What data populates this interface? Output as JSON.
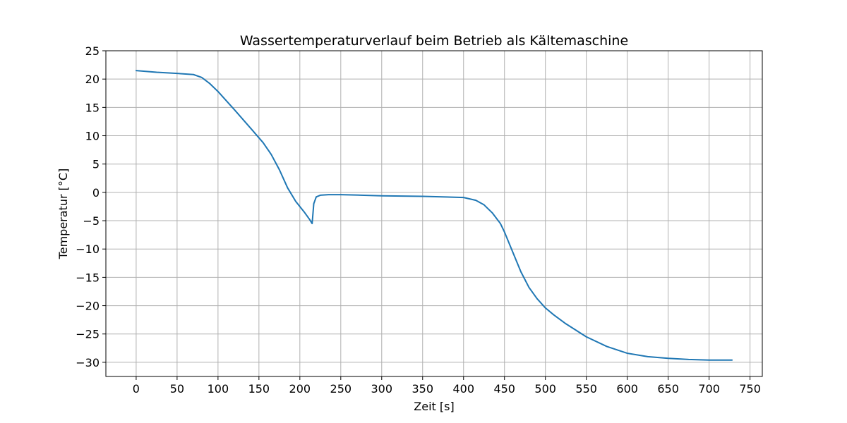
{
  "chart_data": {
    "type": "line",
    "title": "Wassertemperaturverlauf beim Betrieb als Kältemaschine",
    "xlabel": "Zeit [s]",
    "ylabel": "Temperatur [°C]",
    "xlim": [
      -37,
      765
    ],
    "ylim": [
      -32.5,
      25
    ],
    "xticks": [
      0,
      50,
      100,
      150,
      200,
      250,
      300,
      350,
      400,
      450,
      500,
      550,
      600,
      650,
      700,
      750
    ],
    "xtick_labels": [
      "0",
      "50",
      "100",
      "150",
      "200",
      "250",
      "300",
      "350",
      "400",
      "450",
      "500",
      "550",
      "600",
      "650",
      "700",
      "750"
    ],
    "yticks": [
      -30,
      -25,
      -20,
      -15,
      -10,
      -5,
      0,
      5,
      10,
      15,
      20,
      25
    ],
    "ytick_labels": [
      "−30",
      "−25",
      "−20",
      "−15",
      "−10",
      "−5",
      "0",
      "5",
      "10",
      "15",
      "20",
      "25"
    ],
    "grid": true,
    "series": [
      {
        "color": "#1f77b4",
        "x": [
          0,
          25,
          50,
          70,
          80,
          90,
          100,
          120,
          140,
          155,
          165,
          175,
          185,
          195,
          205,
          212,
          215,
          217,
          220,
          225,
          235,
          250,
          275,
          300,
          350,
          400,
          415,
          425,
          435,
          445,
          450,
          460,
          470,
          480,
          490,
          500,
          510,
          525,
          550,
          575,
          600,
          625,
          650,
          675,
          700,
          728
        ],
        "y": [
          21.5,
          21.2,
          21.0,
          20.8,
          20.3,
          19.2,
          17.8,
          14.6,
          11.3,
          8.8,
          6.7,
          4.0,
          0.8,
          -1.6,
          -3.4,
          -4.8,
          -5.5,
          -2.0,
          -0.8,
          -0.5,
          -0.4,
          -0.4,
          -0.5,
          -0.6,
          -0.7,
          -0.9,
          -1.4,
          -2.2,
          -3.6,
          -5.5,
          -7.0,
          -10.5,
          -14.0,
          -16.8,
          -18.8,
          -20.4,
          -21.6,
          -23.2,
          -25.5,
          -27.2,
          -28.4,
          -29.0,
          -29.3,
          -29.5,
          -29.6,
          -29.6
        ]
      }
    ]
  }
}
